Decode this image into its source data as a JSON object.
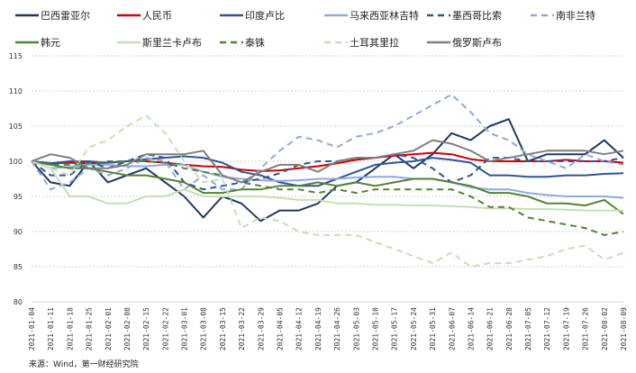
{
  "chart_data": {
    "type": "line",
    "title": "",
    "xlabel": "",
    "ylabel": "",
    "ylim": [
      80,
      115
    ],
    "yticks": [
      "80",
      "85",
      "90",
      "95",
      "100",
      "105",
      "110",
      "115"
    ],
    "grid": true,
    "legend_position": "top",
    "x": [
      "2021-01-04",
      "2021-01-11",
      "2021-01-18",
      "2021-01-25",
      "2021-02-01",
      "2021-02-08",
      "2021-02-15",
      "2021-02-22",
      "2021-03-01",
      "2021-03-08",
      "2021-03-15",
      "2021-03-22",
      "2021-03-29",
      "2021-04-05",
      "2021-04-12",
      "2021-04-19",
      "2021-04-26",
      "2021-05-03",
      "2021-05-10",
      "2021-05-17",
      "2021-05-24",
      "2021-05-31",
      "2021-06-07",
      "2021-06-14",
      "2021-06-21",
      "2021-06-28",
      "2021-07-05",
      "2021-07-12",
      "2021-07-19",
      "2021-07-26",
      "2021-08-02",
      "2021-08-09"
    ],
    "series": [
      {
        "name": "巴西雷亚尔",
        "color": "#1f3864",
        "dash": false,
        "values": [
          100,
          97,
          96.5,
          100,
          97,
          98,
          99,
          97,
          95,
          92,
          95,
          94,
          91.5,
          93,
          93,
          94,
          96.5,
          97,
          99,
          101,
          99,
          101,
          104,
          103,
          105,
          106,
          100,
          101,
          101,
          101,
          103,
          100.5
        ]
      },
      {
        "name": "人民币",
        "color": "#d00000",
        "dash": false,
        "values": [
          100,
          99.7,
          99.8,
          99.7,
          99.8,
          100,
          100,
          99.8,
          99.5,
          99.3,
          99.2,
          98.8,
          98.6,
          98.7,
          99,
          99.3,
          99.7,
          100.2,
          100.5,
          100.8,
          101,
          101.2,
          101,
          100.3,
          100,
          100,
          100,
          100,
          100.2,
          100,
          100,
          99.8
        ]
      },
      {
        "name": "印度卢比",
        "color": "#2f5597",
        "dash": false,
        "values": [
          100,
          99.7,
          100,
          100,
          99.8,
          100,
          100.3,
          100.5,
          100.7,
          100.5,
          99.8,
          98.5,
          98,
          97,
          96.5,
          96.5,
          97.5,
          98.5,
          99.5,
          99.8,
          100,
          100.5,
          100.2,
          99.8,
          98,
          98,
          97.8,
          97.8,
          98,
          98,
          98.2,
          98.3
        ]
      },
      {
        "name": "马来西亚林吉特",
        "color": "#8eaadb",
        "dash": false,
        "values": [
          100,
          99,
          99.2,
          99.5,
          99.5,
          99.3,
          99.3,
          99.5,
          99.5,
          98.5,
          97.8,
          97.5,
          97.3,
          97.2,
          97.3,
          97.5,
          97.5,
          97.7,
          97.8,
          97.8,
          97.5,
          97.5,
          97,
          96.3,
          96,
          96,
          95.5,
          95.2,
          95,
          95,
          95,
          94.8
        ]
      },
      {
        "name": "墨西哥比索",
        "color": "#2f5597",
        "dash": true,
        "values": [
          100,
          98,
          98,
          100,
          99,
          100,
          101,
          100.5,
          97,
          96,
          96.5,
          97,
          97.5,
          98.3,
          99.5,
          100,
          100,
          100.5,
          100.5,
          101,
          100.5,
          99,
          97,
          98,
          100.5,
          100.5,
          100,
          100,
          100,
          100,
          100,
          100.5
        ]
      },
      {
        "name": "南非兰特",
        "color": "#8eaadb",
        "dash": true,
        "values": [
          100,
          96,
          97,
          99,
          98,
          99,
          100.5,
          100,
          96,
          98,
          96,
          96,
          99,
          101.5,
          103.5,
          103,
          102,
          103.5,
          104,
          105,
          106.5,
          108,
          109.5,
          107,
          104,
          103,
          101,
          100,
          99,
          101,
          100,
          99.5
        ]
      },
      {
        "name": "韩元",
        "color": "#548235",
        "dash": false,
        "values": [
          100,
          99.5,
          99,
          99,
          98.5,
          98,
          98,
          97.5,
          97,
          95.5,
          95.5,
          96,
          96,
          96.5,
          96.5,
          97,
          96.5,
          97,
          96.5,
          97,
          97.5,
          97.5,
          97,
          96.5,
          95.5,
          95.5,
          95,
          94,
          94,
          93.7,
          94.5,
          92.5
        ]
      },
      {
        "name": "斯里兰卡卢布",
        "color": "#c5e0b4",
        "dash": false,
        "values": [
          100,
          99,
          95,
          95,
          94,
          94,
          95,
          95,
          96,
          95,
          95,
          95,
          95,
          94.8,
          94.5,
          94.5,
          94,
          94,
          93.8,
          93.8,
          93.7,
          93.7,
          93.6,
          93.5,
          93.3,
          93.3,
          93.2,
          93.2,
          93.1,
          93,
          93,
          93
        ]
      },
      {
        "name": "泰铢",
        "color": "#548235",
        "dash": true,
        "values": [
          100,
          99.5,
          99.5,
          99.7,
          100,
          100,
          100,
          99.8,
          99,
          98.5,
          98,
          97,
          96.5,
          96,
          96,
          95.5,
          96,
          95.5,
          96,
          96,
          96,
          96,
          96,
          95,
          93.5,
          93.5,
          92,
          91.5,
          91,
          90.5,
          89.5,
          90
        ]
      },
      {
        "name": "土耳其里拉",
        "color": "#c5e0b4",
        "dash": true,
        "values": [
          100,
          99,
          98,
          102,
          103,
          105,
          106.5,
          104,
          100,
          97,
          97.5,
          90.5,
          92,
          91.5,
          90,
          89.5,
          89.5,
          89.5,
          88.5,
          87.5,
          86.5,
          85.5,
          87,
          85,
          85.5,
          85.5,
          86,
          86.5,
          87.5,
          88,
          86,
          87
        ]
      },
      {
        "name": "俄罗斯卢布",
        "color": "#7f7f7f",
        "dash": false,
        "values": [
          100,
          101,
          100.5,
          99,
          99,
          99.5,
          101,
          101,
          101,
          101.5,
          98,
          97,
          98.5,
          99.5,
          99.5,
          98.5,
          100,
          100.5,
          100.5,
          101,
          101.5,
          103,
          102.5,
          101.5,
          100,
          100.5,
          101,
          101.5,
          101.5,
          101.5,
          101,
          101.5
        ]
      }
    ],
    "source": "来源：Wind，第一财经研究院"
  }
}
